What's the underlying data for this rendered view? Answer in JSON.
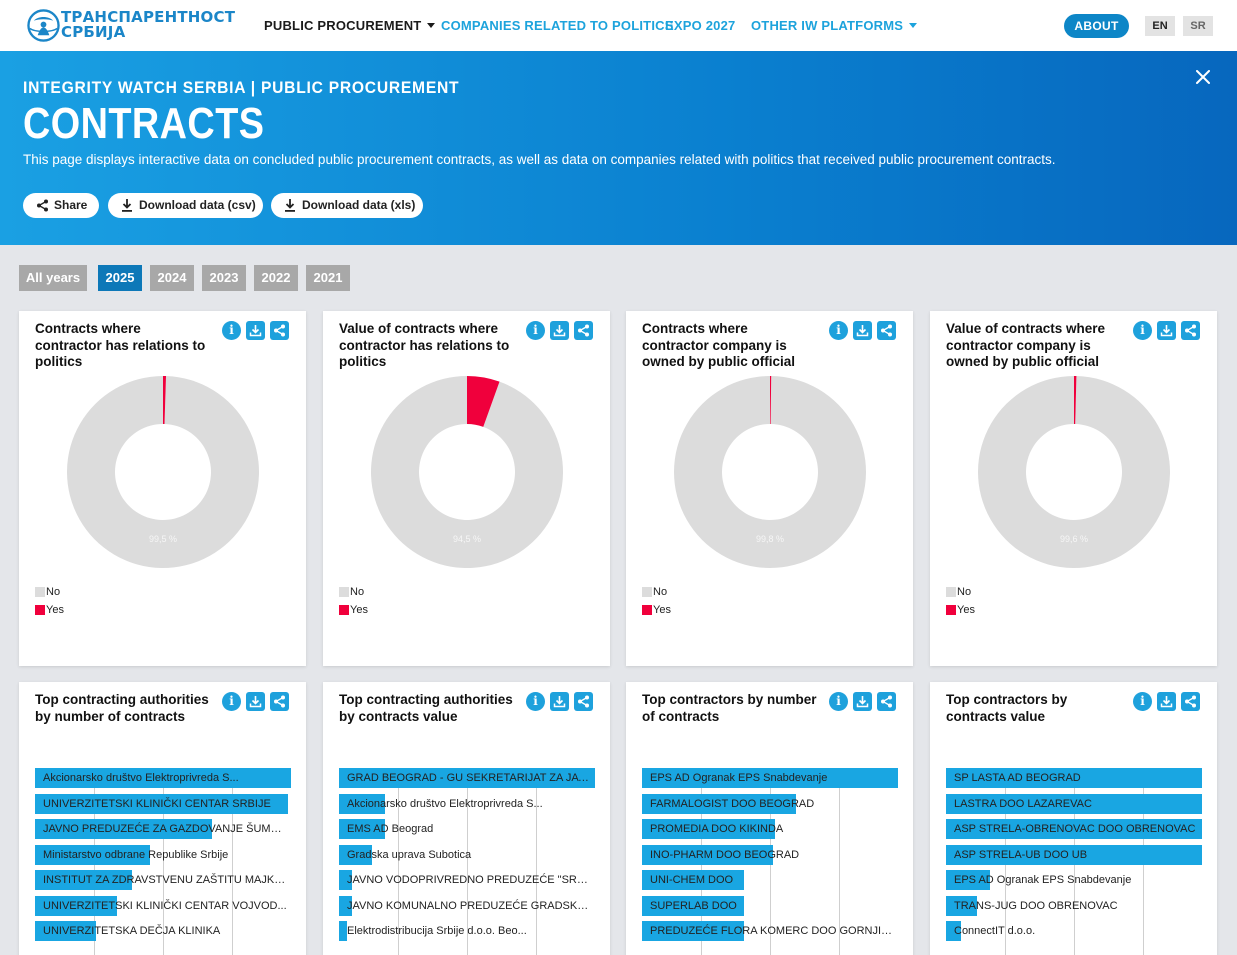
{
  "nav": {
    "logo_line1": "ТРАНСПАРЕНТНОСТ",
    "logo_line2": "СРБИЈА",
    "items": [
      {
        "label": "PUBLIC PROCUREMENT",
        "dropdown": true,
        "active": true
      },
      {
        "label": "COMPANIES RELATED TO POLITICS",
        "dropdown": false,
        "active": false
      },
      {
        "label": "EXPO 2027",
        "dropdown": false,
        "active": false
      },
      {
        "label": "OTHER IW PLATFORMS",
        "dropdown": true,
        "active": false
      }
    ],
    "about_label": "ABOUT",
    "lang_en": "EN",
    "lang_sr": "SR"
  },
  "hero": {
    "subtitle": "INTEGRITY WATCH SERBIA | PUBLIC PROCUREMENT",
    "title": "CONTRACTS",
    "description": "This page displays interactive data on concluded public procurement contracts, as well as data on companies related with politics that received public procurement contracts.",
    "buttons": {
      "share": "Share",
      "csv": "Download data (csv)",
      "xls": "Download data (xls)"
    }
  },
  "years": {
    "items": [
      "All years",
      "2025",
      "2024",
      "2023",
      "2022",
      "2021"
    ],
    "active": "2025"
  },
  "icons": {
    "info": "info-icon",
    "download": "download-icon",
    "share": "share-icon",
    "close": "close-icon"
  },
  "colors": {
    "primary": "#1ea1dc",
    "no": "#dcdcdc",
    "yes": "#f0003c",
    "bar": "#19a6e2"
  },
  "info_glyph": "i",
  "legend": {
    "no": "No",
    "yes": "Yes"
  },
  "donuts": [
    {
      "title": "Contracts where contractor has relations to politics",
      "no_pct": 99.5,
      "label": "99,5 %"
    },
    {
      "title": "Value of contracts where contractor has relations to politics",
      "no_pct": 94.5,
      "label": "94,5 %"
    },
    {
      "title": "Contracts where contractor company is owned by public official",
      "no_pct": 99.8,
      "label": "99,8 %"
    },
    {
      "title": "Value of contracts where contractor company is owned by public official",
      "no_pct": 99.6,
      "label": "99,6 %"
    }
  ],
  "chart_data": [
    {
      "type": "bar",
      "title": "Top contracting authorities by number of contracts",
      "categories": [
        "Akcionarsko društvo Elektroprivreda S...",
        "UNIVERZITETSKI KLINIČKI CENTAR SRBIJE",
        "JAVNO PREDUZEĆE ZA GAZDOVANJE ŠUMAMA ...",
        "Ministarstvo odbrane Republike Srbije",
        "INSTITUT ZA ZDRAVSTVENU ZAŠTITU MAJKE...",
        "UNIVERZITETSKI KLINIČKI CENTAR VOJVOD...",
        "UNIVERZITETSKA DEČJA KLINIKA"
      ],
      "values": [
        1.0,
        0.99,
        0.69,
        0.45,
        0.38,
        0.32,
        0.24
      ]
    },
    {
      "type": "bar",
      "title": "Top contracting authorities by contracts value",
      "categories": [
        "GRAD BEOGRAD - GU SEKRETARIJAT ZA JAV...",
        "Akcionarsko društvo Elektroprivreda S...",
        "EMS AD Beograd",
        "Gradska uprava Subotica",
        "JAVNO VODOPRIVREDNO PREDUZEĆE \"SRBIJA...",
        "JAVNO KOMUNALNO PREDUZEĆE GRADSKO SAO...",
        "Elektrodistribucija Srbije d.o.o. Beo..."
      ],
      "values": [
        1.0,
        0.18,
        0.18,
        0.13,
        0.05,
        0.05,
        0.03
      ]
    },
    {
      "type": "bar",
      "title": "Top contractors by number of contracts",
      "categories": [
        "EPS AD Ogranak EPS Snabdevanje",
        "FARMALOGIST DOO BEOGRAD",
        "PROMEDIA DOO KIKINDA",
        "INO-PHARM DOO BEOGRAD",
        "UNI-CHEM DOO",
        "SUPERLAB DOO",
        "PREDUZEĆE FLORA KOMERC DOO GORNJI MIL..."
      ],
      "values": [
        1.0,
        0.6,
        0.52,
        0.51,
        0.4,
        0.4,
        0.4
      ]
    },
    {
      "type": "bar",
      "title": "Top contractors by contracts value",
      "categories": [
        "SP LASTA AD BEOGRAD",
        "LASTRA DOO LAZAREVAC",
        "ASP STRELA-OBRENOVAC DOO OBRENOVAC",
        "ASP STRELA-UB DOO UB",
        "EPS AD Ogranak EPS Snabdevanje",
        "TRANS-JUG DOO OBRENOVAC",
        "ConnectIT d.o.o."
      ],
      "values": [
        1.0,
        1.0,
        1.0,
        1.0,
        0.17,
        0.12,
        0.06
      ]
    }
  ]
}
